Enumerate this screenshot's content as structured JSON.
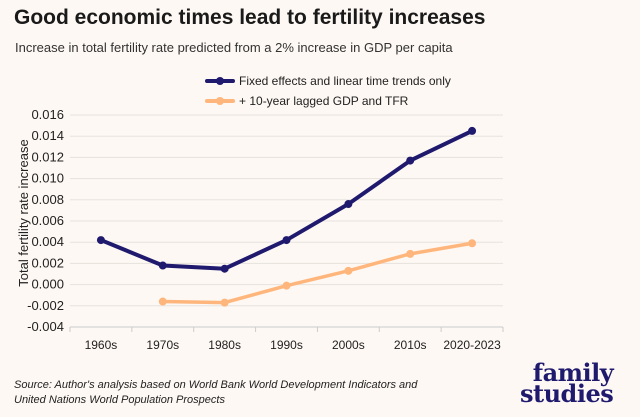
{
  "chart_data": {
    "type": "line",
    "title": "Good economic times lead to fertility increases",
    "subtitle": "Increase in total fertility rate predicted from a 2% increase in GDP per capita",
    "xlabel": "",
    "ylabel": "Total fertility rate increase",
    "categories": [
      "1960s",
      "1970s",
      "1980s",
      "1990s",
      "2000s",
      "2010s",
      "2020-2023"
    ],
    "ylim": [
      -0.004,
      0.016
    ],
    "yticks": [
      "0.016",
      "0.014",
      "0.012",
      "0.010",
      "0.008",
      "0.006",
      "0.004",
      "0.002",
      "0.000",
      "-0.002",
      "-0.004"
    ],
    "grid": true,
    "legend_placement": "top-center",
    "series": [
      {
        "name": "Fixed effects and linear time trends only",
        "color": "#1f1a6e",
        "values": [
          0.0042,
          0.0018,
          0.0015,
          0.0042,
          0.0076,
          0.0117,
          0.0145
        ]
      },
      {
        "name": "+ 10-year lagged GDP and TFR",
        "color": "#ffb67c",
        "values": [
          null,
          -0.0016,
          -0.0017,
          -0.0001,
          0.0013,
          0.0029,
          0.0039
        ]
      }
    ]
  },
  "source": {
    "line1": "Source: Author's analysis based on World Bank World Development Indicators and",
    "line2": "United Nations World Population Prospects"
  },
  "logo": {
    "line1": "family",
    "line2": "studies"
  }
}
